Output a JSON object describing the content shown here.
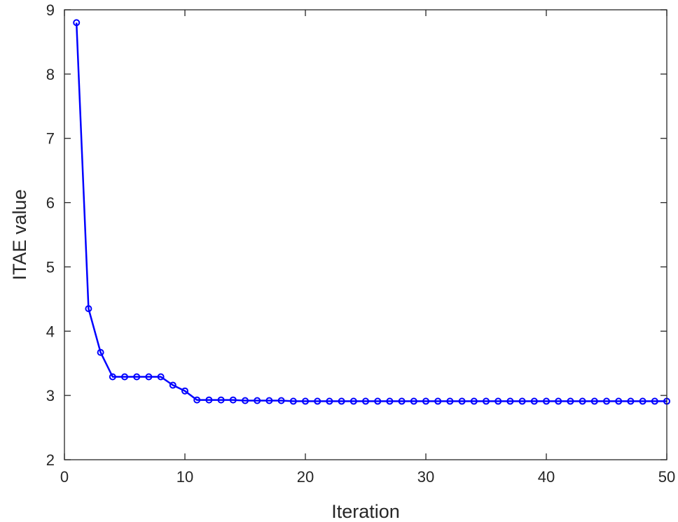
{
  "chart_data": {
    "type": "line",
    "xlabel": "Iteration",
    "ylabel": "ITAE value",
    "xlim": [
      0,
      50
    ],
    "ylim": [
      2,
      9
    ],
    "xticks": [
      0,
      10,
      20,
      30,
      40,
      50
    ],
    "yticks": [
      2,
      3,
      4,
      5,
      6,
      7,
      8,
      9
    ],
    "grid": false,
    "series": [
      {
        "color": "#0000ff",
        "marker": "circle",
        "x": [
          1,
          2,
          3,
          4,
          5,
          6,
          7,
          8,
          9,
          10,
          11,
          12,
          13,
          14,
          15,
          16,
          17,
          18,
          19,
          20,
          21,
          22,
          23,
          24,
          25,
          26,
          27,
          28,
          29,
          30,
          31,
          32,
          33,
          34,
          35,
          36,
          37,
          38,
          39,
          40,
          41,
          42,
          43,
          44,
          45,
          46,
          47,
          48,
          49,
          50
        ],
        "y": [
          8.8,
          4.35,
          3.67,
          3.29,
          3.29,
          3.29,
          3.29,
          3.29,
          3.16,
          3.07,
          2.93,
          2.93,
          2.93,
          2.93,
          2.92,
          2.92,
          2.92,
          2.92,
          2.91,
          2.91,
          2.91,
          2.91,
          2.91,
          2.91,
          2.91,
          2.91,
          2.91,
          2.91,
          2.91,
          2.91,
          2.91,
          2.91,
          2.91,
          2.91,
          2.91,
          2.91,
          2.91,
          2.91,
          2.91,
          2.91,
          2.91,
          2.91,
          2.91,
          2.91,
          2.91,
          2.91,
          2.91,
          2.91,
          2.91,
          2.91
        ]
      }
    ]
  }
}
